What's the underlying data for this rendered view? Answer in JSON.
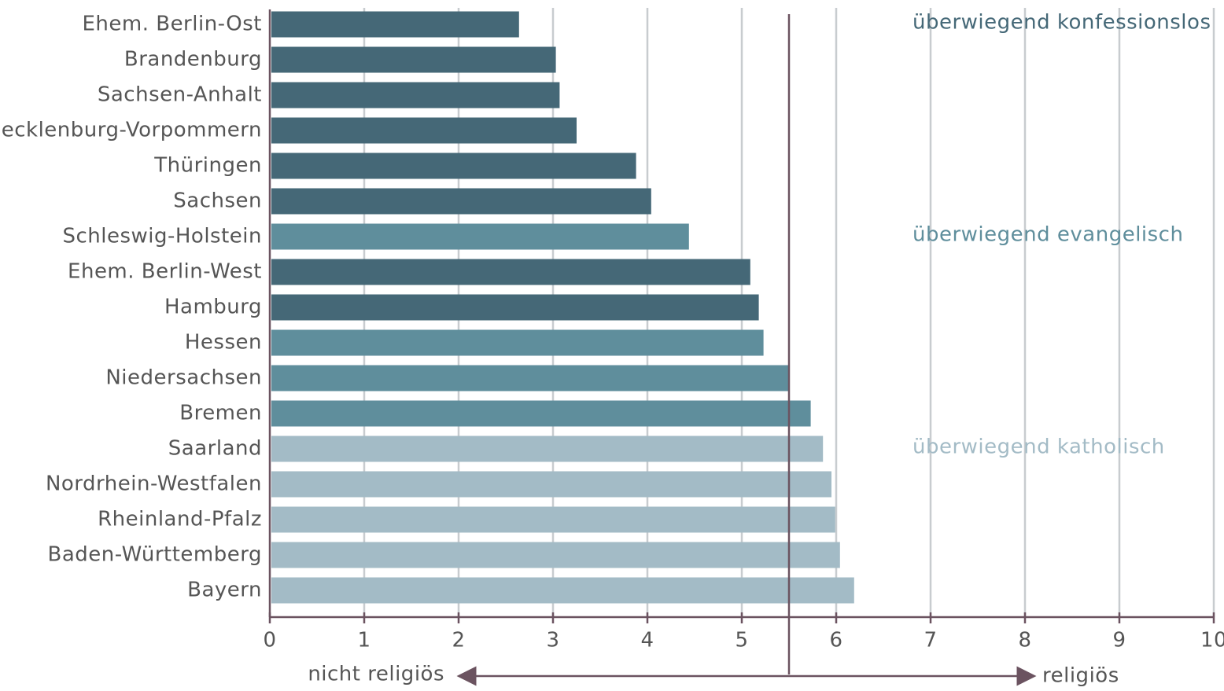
{
  "chart_data": {
    "type": "bar",
    "orientation": "horizontal",
    "categories": [
      "Ehem. Berlin-Ost",
      "Brandenburg",
      "Sachsen-Anhalt",
      "Mecklenburg-Vorpommern",
      "Thüringen",
      "Sachsen",
      "Schleswig-Holstein",
      "Ehem. Berlin-West",
      "Hamburg",
      "Hessen",
      "Niedersachsen",
      "Bremen",
      "Saarland",
      "Nordrhein-Westfalen",
      "Rheinland-Pfalz",
      "Baden-Württemberg",
      "Bayern"
    ],
    "series": [
      {
        "name": "überwiegend konfessionslos",
        "color": "#456877",
        "values": [
          2.64,
          3.03,
          3.07,
          3.25,
          3.88,
          4.04,
          null,
          5.09,
          5.18,
          null,
          null,
          null,
          null,
          null,
          null,
          null,
          null
        ]
      },
      {
        "name": "überwiegend evangelisch",
        "color": "#5f8e9c",
        "values": [
          null,
          null,
          null,
          null,
          null,
          null,
          4.44,
          null,
          null,
          5.23,
          5.5,
          5.73,
          null,
          null,
          null,
          null,
          null
        ]
      },
      {
        "name": "überwiegend katholisch",
        "color": "#a3bbc6",
        "values": [
          null,
          null,
          null,
          null,
          null,
          null,
          null,
          null,
          null,
          null,
          null,
          null,
          5.86,
          5.95,
          5.99,
          6.04,
          6.19
        ]
      }
    ],
    "xlim": [
      0,
      10
    ],
    "xticks": [
      0,
      1,
      2,
      3,
      4,
      5,
      6,
      7,
      8,
      9,
      10
    ],
    "grid": true,
    "reference_line": 5.5,
    "annotations": {
      "left": "nicht religiös",
      "right": "religiös"
    }
  }
}
